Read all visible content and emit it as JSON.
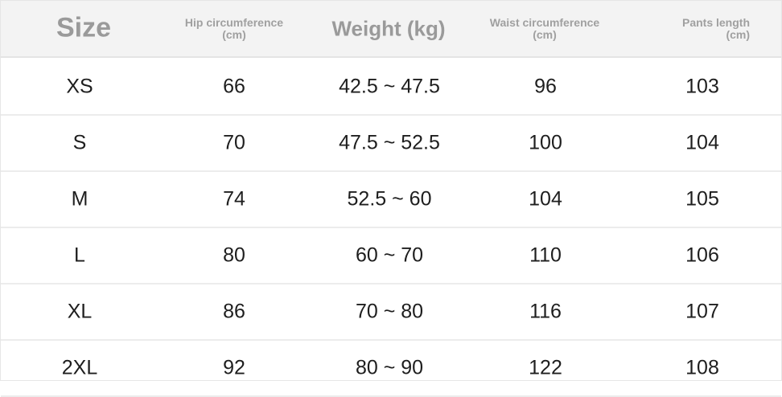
{
  "headers": {
    "size": "Size",
    "hip": "Hip circumference (cm)",
    "weight": "Weight (kg)",
    "waist": "Waist circumference (cm)",
    "pants": "Pants length (cm)"
  },
  "rows": [
    {
      "size": "XS",
      "hip": "66",
      "weight": "42.5 ~ 47.5",
      "waist": "96",
      "pants": "103"
    },
    {
      "size": "S",
      "hip": "70",
      "weight": "47.5 ~ 52.5",
      "waist": "100",
      "pants": "104"
    },
    {
      "size": "M",
      "hip": "74",
      "weight": "52.5 ~ 60",
      "waist": "104",
      "pants": "105"
    },
    {
      "size": "L",
      "hip": "80",
      "weight": "60 ~ 70",
      "waist": "110",
      "pants": "106"
    },
    {
      "size": "XL",
      "hip": "86",
      "weight": "70 ~ 80",
      "waist": "116",
      "pants": "107"
    },
    {
      "size": "2XL",
      "hip": "92",
      "weight": "80 ~ 90",
      "waist": "122",
      "pants": "108"
    }
  ]
}
